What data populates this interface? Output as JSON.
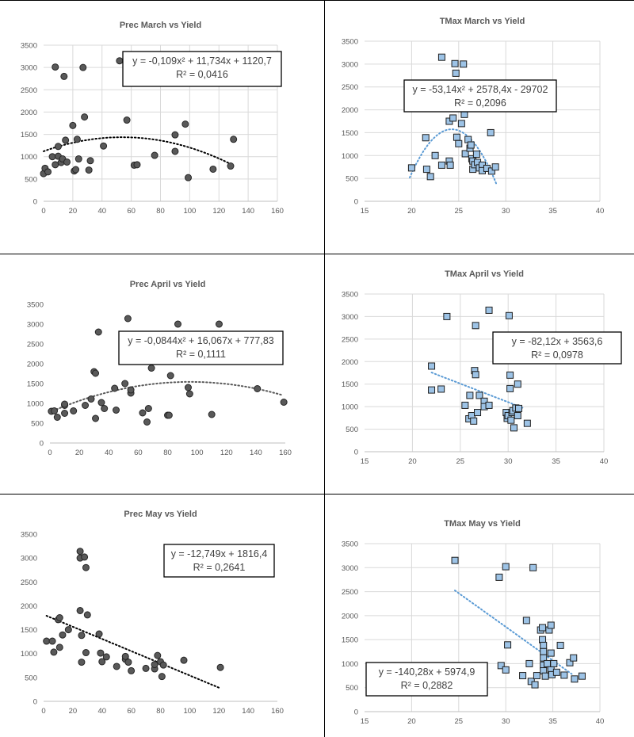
{
  "charts": [
    {
      "id": "prec-march",
      "chart_data": {
        "type": "scatter",
        "title": "Prec March vs Yield",
        "xlim": [
          0,
          160
        ],
        "ylim": [
          0,
          3500
        ],
        "x_ticks": [
          "0",
          "20",
          "40",
          "60",
          "80",
          "100",
          "120",
          "140",
          "160"
        ],
        "y_ticks": [
          "0",
          "500",
          "1000",
          "1500",
          "2000",
          "2500",
          "3000",
          "3500"
        ],
        "grid": true,
        "marker": "circle",
        "marker_color": "#595959",
        "trendline": {
          "kind": "poly2",
          "a": -0.109,
          "b": 11.734,
          "c": 1120.7,
          "x_range": [
            0,
            128
          ],
          "color": "#000000"
        },
        "equation_lines": [
          "y = -0,109x² + 11,734x + 1120,7",
          "R² = 0,0416"
        ],
        "points": [
          [
            0,
            620
          ],
          [
            1,
            740
          ],
          [
            3,
            660
          ],
          [
            6,
            1000
          ],
          [
            8,
            3010
          ],
          [
            8,
            820
          ],
          [
            10,
            1010
          ],
          [
            10,
            1230
          ],
          [
            12,
            870
          ],
          [
            13,
            950
          ],
          [
            14,
            2800
          ],
          [
            15,
            1370
          ],
          [
            16,
            880
          ],
          [
            20,
            1700
          ],
          [
            21,
            680
          ],
          [
            22,
            710
          ],
          [
            23,
            1390
          ],
          [
            24,
            950
          ],
          [
            27,
            3000
          ],
          [
            28,
            1890
          ],
          [
            31,
            700
          ],
          [
            32,
            910
          ],
          [
            41,
            1240
          ],
          [
            52,
            3150
          ],
          [
            57,
            1820
          ],
          [
            62,
            810
          ],
          [
            64,
            820
          ],
          [
            76,
            1030
          ],
          [
            90,
            1120
          ],
          [
            90,
            1490
          ],
          [
            97,
            1730
          ],
          [
            99,
            530
          ],
          [
            116,
            720
          ],
          [
            128,
            790
          ],
          [
            130,
            1390
          ]
        ]
      }
    },
    {
      "id": "tmax-march",
      "chart_data": {
        "type": "scatter",
        "title": "TMax March vs Yield",
        "xlim": [
          15,
          40
        ],
        "ylim": [
          0,
          3500
        ],
        "x_ticks": [
          "15",
          "20",
          "25",
          "30",
          "35",
          "40"
        ],
        "y_ticks": [
          "0",
          "500",
          "1000",
          "1500",
          "2000",
          "2500",
          "3000",
          "3500"
        ],
        "grid": true,
        "marker": "square",
        "marker_color": "#9dc3e6",
        "trendline": {
          "kind": "poly2",
          "a": -53.14,
          "b": 2578.4,
          "c": -29702,
          "x_range": [
            19.8,
            29
          ],
          "color": "#5b9bd5",
          "dotted": true
        },
        "equation_lines": [
          "y = -53,14x² + 2578,4x - 29702",
          "R² = 0,2096"
        ],
        "points": [
          [
            20,
            730
          ],
          [
            21.5,
            1390
          ],
          [
            21.6,
            700
          ],
          [
            22,
            540
          ],
          [
            22.5,
            1000
          ],
          [
            23.2,
            3150
          ],
          [
            23.2,
            790
          ],
          [
            24,
            1750
          ],
          [
            24,
            880
          ],
          [
            24.1,
            790
          ],
          [
            24.4,
            1820
          ],
          [
            24.6,
            3010
          ],
          [
            24.7,
            2800
          ],
          [
            24.8,
            1400
          ],
          [
            25,
            1260
          ],
          [
            25.3,
            1700
          ],
          [
            25.5,
            3000
          ],
          [
            25.6,
            1900
          ],
          [
            25.7,
            1040
          ],
          [
            26,
            1350
          ],
          [
            26.2,
            1160
          ],
          [
            26.3,
            1230
          ],
          [
            26.4,
            930
          ],
          [
            26.5,
            880
          ],
          [
            26.5,
            700
          ],
          [
            26.7,
            800
          ],
          [
            26.9,
            1030
          ],
          [
            27,
            850
          ],
          [
            27.2,
            730
          ],
          [
            27.5,
            790
          ],
          [
            27.5,
            670
          ],
          [
            28,
            720
          ],
          [
            28.4,
            1500
          ],
          [
            28.5,
            660
          ],
          [
            28.9,
            750
          ]
        ]
      }
    },
    {
      "id": "prec-april",
      "chart_data": {
        "type": "scatter",
        "title": "Prec April vs Yield",
        "xlim": [
          0,
          160
        ],
        "ylim": [
          0,
          3500
        ],
        "x_ticks": [
          "0",
          "20",
          "40",
          "60",
          "80",
          "100",
          "120",
          "140",
          "160"
        ],
        "y_ticks": [
          "0",
          "500",
          "1000",
          "1500",
          "2000",
          "2500",
          "3000",
          "3500"
        ],
        "grid": false,
        "marker": "circle",
        "marker_color": "#595959",
        "trendline": {
          "kind": "poly2",
          "a": -0.0844,
          "b": 16.067,
          "c": 777.83,
          "x_range": [
            0,
            158
          ],
          "color": "#595959"
        },
        "equation_lines": [
          "y = -0,0844x² + 16,067x + 777,83",
          "R² = 0,1111"
        ],
        "points": [
          [
            1,
            800
          ],
          [
            3,
            810
          ],
          [
            5,
            650
          ],
          [
            10,
            750
          ],
          [
            10,
            950
          ],
          [
            10,
            980
          ],
          [
            16,
            810
          ],
          [
            24,
            950
          ],
          [
            28,
            1110
          ],
          [
            30,
            1800
          ],
          [
            31,
            1760
          ],
          [
            31,
            620
          ],
          [
            33,
            2800
          ],
          [
            35,
            1020
          ],
          [
            37,
            870
          ],
          [
            44,
            1380
          ],
          [
            45,
            830
          ],
          [
            51,
            1500
          ],
          [
            53,
            3140
          ],
          [
            55,
            1260
          ],
          [
            55,
            1340
          ],
          [
            63,
            760
          ],
          [
            66,
            530
          ],
          [
            67,
            870
          ],
          [
            69,
            1890
          ],
          [
            80,
            700
          ],
          [
            81,
            700
          ],
          [
            82,
            1700
          ],
          [
            87,
            3000
          ],
          [
            94,
            1400
          ],
          [
            95,
            1240
          ],
          [
            110,
            720
          ],
          [
            115,
            3000
          ],
          [
            141,
            1370
          ],
          [
            159,
            1030
          ]
        ]
      }
    },
    {
      "id": "tmax-april",
      "chart_data": {
        "type": "scatter",
        "title": "TMax April vs Yield",
        "xlim": [
          15,
          40
        ],
        "ylim": [
          0,
          3500
        ],
        "x_ticks": [
          "15",
          "20",
          "25",
          "30",
          "35",
          "40"
        ],
        "y_ticks": [
          "0",
          "500",
          "1000",
          "1500",
          "2000",
          "2500",
          "3000",
          "3500"
        ],
        "grid": true,
        "marker": "square",
        "marker_color": "#9dc3e6",
        "trendline": {
          "kind": "linear",
          "slope": -82.12,
          "intercept": 3563.6,
          "x_range": [
            22,
            31.5
          ],
          "color": "#5b9bd5",
          "dotted": true
        },
        "equation_lines": [
          "y = -82,12x + 3563,6",
          "R² = 0,0978"
        ],
        "points": [
          [
            22,
            1900
          ],
          [
            22,
            1370
          ],
          [
            23,
            1390
          ],
          [
            23.6,
            3000
          ],
          [
            25.5,
            1030
          ],
          [
            25.9,
            730
          ],
          [
            26,
            1250
          ],
          [
            26.2,
            800
          ],
          [
            26.4,
            680
          ],
          [
            26.5,
            1800
          ],
          [
            26.6,
            1710
          ],
          [
            26.6,
            2800
          ],
          [
            26.8,
            870
          ],
          [
            27,
            1250
          ],
          [
            27.5,
            1120
          ],
          [
            27.5,
            1000
          ],
          [
            28,
            1030
          ],
          [
            28,
            3140
          ],
          [
            29.8,
            870
          ],
          [
            29.9,
            740
          ],
          [
            30,
            800
          ],
          [
            30.1,
            3020
          ],
          [
            30.2,
            1700
          ],
          [
            30.2,
            1400
          ],
          [
            30.3,
            700
          ],
          [
            30.4,
            870
          ],
          [
            30.5,
            910
          ],
          [
            30.6,
            530
          ],
          [
            30.8,
            970
          ],
          [
            31,
            1500
          ],
          [
            31.1,
            960
          ],
          [
            31,
            800
          ],
          [
            32,
            630
          ]
        ]
      }
    },
    {
      "id": "prec-may",
      "chart_data": {
        "type": "scatter",
        "title": "Prec May vs Yield",
        "xlim": [
          0,
          160
        ],
        "ylim": [
          0,
          3500
        ],
        "x_ticks": [
          "0",
          "20",
          "40",
          "60",
          "80",
          "100",
          "120",
          "140",
          "160"
        ],
        "y_ticks": [
          "0",
          "500",
          "1000",
          "1500",
          "2000",
          "2500",
          "3000",
          "3500"
        ],
        "grid": false,
        "marker": "circle",
        "marker_color": "#595959",
        "trendline": {
          "kind": "linear",
          "slope": -12.749,
          "intercept": 1816.4,
          "x_range": [
            2,
            121
          ],
          "color": "#000000",
          "dotted": true
        },
        "equation_lines": [
          "y = -12,749x + 1816,4",
          "R² = 0,2641"
        ],
        "points": [
          [
            2,
            1260
          ],
          [
            6,
            1260
          ],
          [
            7,
            1030
          ],
          [
            10,
            1710
          ],
          [
            11,
            1750
          ],
          [
            11,
            1130
          ],
          [
            13,
            1390
          ],
          [
            17,
            1500
          ],
          [
            25,
            3140
          ],
          [
            25,
            1900
          ],
          [
            25,
            3000
          ],
          [
            26,
            1380
          ],
          [
            26,
            820
          ],
          [
            28,
            3020
          ],
          [
            29,
            2800
          ],
          [
            29,
            1020
          ],
          [
            30,
            1810
          ],
          [
            38,
            1410
          ],
          [
            39,
            1010
          ],
          [
            40,
            830
          ],
          [
            43,
            930
          ],
          [
            50,
            730
          ],
          [
            56,
            880
          ],
          [
            56,
            940
          ],
          [
            58,
            820
          ],
          [
            60,
            640
          ],
          [
            70,
            690
          ],
          [
            76,
            680
          ],
          [
            76,
            770
          ],
          [
            78,
            960
          ],
          [
            80,
            830
          ],
          [
            81,
            520
          ],
          [
            82,
            760
          ],
          [
            96,
            860
          ],
          [
            121,
            710
          ]
        ]
      }
    },
    {
      "id": "tmax-may",
      "chart_data": {
        "type": "scatter",
        "title": "TMax May vs Yield",
        "xlim": [
          15,
          40
        ],
        "ylim": [
          0,
          3500
        ],
        "x_ticks": [
          "15",
          "20",
          "25",
          "30",
          "35",
          "40"
        ],
        "y_ticks": [
          "0",
          "500",
          "1000",
          "1500",
          "2000",
          "2500",
          "3000",
          "3500"
        ],
        "grid": true,
        "marker": "square",
        "marker_color": "#9dc3e6",
        "trendline": {
          "kind": "linear",
          "slope": -140.28,
          "intercept": 5974.9,
          "x_range": [
            24.6,
            37
          ],
          "color": "#5b9bd5",
          "dotted": true
        },
        "equation_lines": [
          "y = -140,28x + 5974,9",
          "R² = 0,2882"
        ],
        "points": [
          [
            24.6,
            3150
          ],
          [
            29.3,
            2800
          ],
          [
            29.5,
            960
          ],
          [
            30,
            3020
          ],
          [
            30,
            870
          ],
          [
            30.2,
            1390
          ],
          [
            31.8,
            750
          ],
          [
            32.2,
            1900
          ],
          [
            32.5,
            1000
          ],
          [
            32.7,
            630
          ],
          [
            32.9,
            3000
          ],
          [
            33.1,
            560
          ],
          [
            33.3,
            750
          ],
          [
            33.7,
            1700
          ],
          [
            33.9,
            1750
          ],
          [
            33.9,
            1500
          ],
          [
            34,
            1380
          ],
          [
            34,
            1250
          ],
          [
            34,
            1120
          ],
          [
            34,
            970
          ],
          [
            34,
            850
          ],
          [
            34.2,
            740
          ],
          [
            34.4,
            1000
          ],
          [
            34.6,
            1700
          ],
          [
            34.8,
            1800
          ],
          [
            34.8,
            1220
          ],
          [
            34.8,
            870
          ],
          [
            34.9,
            770
          ],
          [
            35.1,
            1000
          ],
          [
            35.4,
            820
          ],
          [
            35.8,
            1380
          ],
          [
            36.2,
            760
          ],
          [
            36.8,
            1020
          ],
          [
            37.2,
            1120
          ],
          [
            37.3,
            680
          ],
          [
            38.1,
            740
          ]
        ]
      }
    }
  ]
}
